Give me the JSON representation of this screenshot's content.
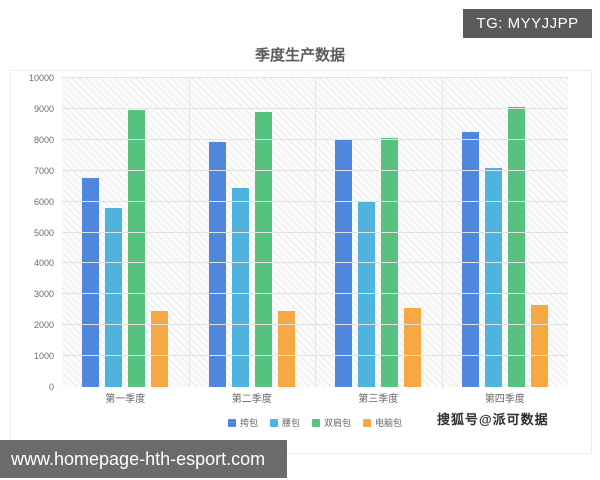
{
  "badge": {
    "text": "TG: MYYJJPP"
  },
  "watermark": {
    "text": "搜狐号@派可数据"
  },
  "url_bar": {
    "text": "www.homepage-hth-esport.com"
  },
  "chart_data": {
    "type": "bar",
    "title": "季度生产数据",
    "categories": [
      "第一季度",
      "第二季度",
      "第三季度",
      "第四季度"
    ],
    "series": [
      {
        "name": "挎包",
        "color": "#4f87dc",
        "values": [
          6780,
          7920,
          8000,
          8250
        ]
      },
      {
        "name": "腰包",
        "color": "#4fb3e0",
        "values": [
          5780,
          6430,
          6000,
          7100
        ]
      },
      {
        "name": "双肩包",
        "color": "#57c17f",
        "values": [
          8950,
          8890,
          8050,
          9050
        ]
      },
      {
        "name": "电脑包",
        "color": "#f6a844",
        "values": [
          2450,
          2450,
          2550,
          2650
        ]
      }
    ],
    "ylim": [
      0,
      10000
    ],
    "ytick_step": 1000,
    "grid": true,
    "legend_position": "bottom",
    "xlabel": "",
    "ylabel": ""
  }
}
